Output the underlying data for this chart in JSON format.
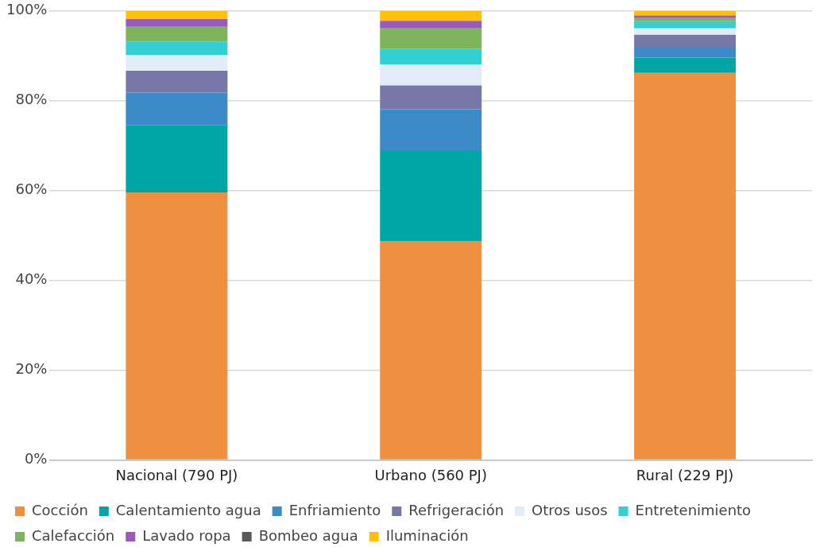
{
  "chart_data": {
    "type": "bar",
    "stacked": true,
    "categories": [
      "Nacional (790 PJ)",
      "Urbano (560 PJ)",
      "Rural (229 PJ)"
    ],
    "series": [
      {
        "name": "Cocción",
        "color": "#ef8f40",
        "values": [
          59.6,
          48.8,
          86.2
        ]
      },
      {
        "name": "Calentamiento agua",
        "color": "#00a5a5",
        "values": [
          15.0,
          20.0,
          3.4
        ]
      },
      {
        "name": "Enfriamiento",
        "color": "#3d8ac8",
        "values": [
          7.2,
          9.3,
          2.2
        ]
      },
      {
        "name": "Refrigeración",
        "color": "#7878a8",
        "values": [
          4.9,
          5.3,
          2.9
        ]
      },
      {
        "name": "Otros usos",
        "color": "#e2ecf7",
        "values": [
          3.5,
          4.7,
          1.4
        ]
      },
      {
        "name": "Entretenimiento",
        "color": "#33d0d3",
        "values": [
          3.0,
          3.5,
          1.6
        ]
      },
      {
        "name": "Calefacción",
        "color": "#7fb55a",
        "values": [
          3.4,
          4.5,
          0.7
        ]
      },
      {
        "name": "Lavado ropa",
        "color": "#9b59c0",
        "values": [
          1.6,
          1.7,
          0.6
        ]
      },
      {
        "name": "Bombeo agua",
        "color": "#595959",
        "values": [
          0,
          0,
          0
        ]
      },
      {
        "name": "Iluminación",
        "color": "#ffc000",
        "values": [
          1.8,
          2.2,
          1.0
        ]
      }
    ],
    "ylim": [
      0,
      100
    ],
    "yticks": [
      {
        "value": 0,
        "label": "0%"
      },
      {
        "value": 20,
        "label": "20%"
      },
      {
        "value": 40,
        "label": "40%"
      },
      {
        "value": 60,
        "label": "60%"
      },
      {
        "value": 80,
        "label": "80%"
      },
      {
        "value": 100,
        "label": "100%"
      }
    ],
    "grid": "y",
    "legend": "bottom"
  }
}
